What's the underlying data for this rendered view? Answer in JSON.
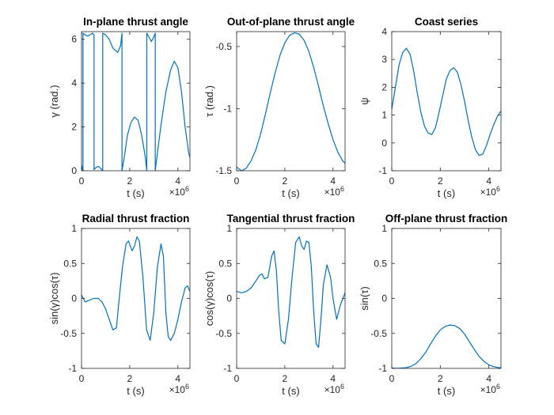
{
  "figure": {
    "background": "#ffffff",
    "line_color": "#0072BD",
    "axis_color": "#262626"
  },
  "chart_data": [
    {
      "type": "line",
      "title": "In-plane thrust angle",
      "xlabel": "t (s)",
      "ylabel": "γ (rad.)",
      "x_exponent_label": "×10^6",
      "xlim": [
        0,
        4.5
      ],
      "ylim": [
        0,
        6.35
      ],
      "xticks": [
        0,
        2,
        4
      ],
      "xtick_labels": [
        "0",
        "2",
        "4"
      ],
      "yticks": [
        0,
        2,
        4,
        6
      ],
      "ytick_labels": [
        "0",
        "2",
        "4",
        "6"
      ],
      "series": [
        {
          "x": [
            0,
            0.03,
            0.06,
            0.06,
            0.15,
            0.25,
            0.35,
            0.45,
            0.52,
            0.52,
            0.6,
            0.7,
            0.8,
            0.88,
            0.88,
            1.0,
            1.15,
            1.3,
            1.5,
            1.62,
            1.68,
            1.68,
            1.8,
            1.9,
            2.05,
            2.2,
            2.35,
            2.5,
            2.65,
            2.71,
            2.71,
            2.8,
            2.9,
            3.0,
            3.06,
            3.06,
            3.15,
            3.3,
            3.5,
            3.7,
            3.85,
            4.0,
            4.15,
            4.3,
            4.45,
            4.5
          ],
          "y": [
            0.25,
            0.1,
            0.0,
            6.28,
            6.2,
            6.15,
            6.2,
            6.28,
            6.2,
            0.05,
            0.15,
            0.2,
            0.1,
            0.0,
            6.28,
            6.2,
            6.0,
            5.6,
            5.4,
            5.7,
            6.28,
            0.0,
            0.8,
            1.6,
            2.2,
            2.45,
            2.3,
            1.6,
            0.6,
            0.0,
            6.28,
            6.1,
            5.9,
            6.1,
            6.28,
            0.0,
            0.8,
            2.1,
            3.6,
            4.6,
            5.0,
            4.7,
            3.6,
            2.0,
            0.8,
            0.6
          ]
        }
      ]
    },
    {
      "type": "line",
      "title": "Out-of-plane thrust angle",
      "xlabel": "t (s)",
      "ylabel": "τ (rad.)",
      "x_exponent_label": "×10^6",
      "xlim": [
        0,
        4.5
      ],
      "ylim": [
        -1.5,
        -0.38
      ],
      "xticks": [
        0,
        2,
        4
      ],
      "xtick_labels": [
        "0",
        "2",
        "4"
      ],
      "yticks": [
        -1.5,
        -1,
        -0.5
      ],
      "ytick_labels": [
        "-1.5",
        "-1",
        "-0.5"
      ],
      "series": [
        {
          "x": [
            0,
            0.2,
            0.4,
            0.6,
            0.8,
            1.0,
            1.2,
            1.4,
            1.6,
            1.8,
            2.0,
            2.2,
            2.4,
            2.6,
            2.8,
            3.0,
            3.2,
            3.4,
            3.6,
            3.8,
            4.0,
            4.2,
            4.4,
            4.5
          ],
          "y": [
            -1.47,
            -1.5,
            -1.48,
            -1.42,
            -1.33,
            -1.2,
            -1.04,
            -0.87,
            -0.71,
            -0.57,
            -0.47,
            -0.41,
            -0.39,
            -0.4,
            -0.45,
            -0.54,
            -0.67,
            -0.82,
            -0.98,
            -1.12,
            -1.25,
            -1.35,
            -1.42,
            -1.44
          ]
        }
      ]
    },
    {
      "type": "line",
      "title": "Coast series",
      "xlabel": "t (s)",
      "ylabel": "ψ",
      "x_exponent_label": "×10^6",
      "xlim": [
        0,
        4.5
      ],
      "ylim": [
        -1,
        4
      ],
      "xticks": [
        0,
        2,
        4
      ],
      "xtick_labels": [
        "0",
        "2",
        "4"
      ],
      "yticks": [
        -1,
        0,
        1,
        2,
        3,
        4
      ],
      "ytick_labels": [
        "-1",
        "0",
        "1",
        "2",
        "3",
        "4"
      ],
      "series": [
        {
          "x": [
            0,
            0.15,
            0.3,
            0.45,
            0.6,
            0.75,
            0.9,
            1.05,
            1.2,
            1.35,
            1.5,
            1.65,
            1.8,
            1.95,
            2.1,
            2.25,
            2.4,
            2.55,
            2.7,
            2.85,
            3.0,
            3.15,
            3.3,
            3.45,
            3.6,
            3.75,
            3.9,
            4.05,
            4.2,
            4.35,
            4.5
          ],
          "y": [
            1.2,
            2.0,
            2.8,
            3.25,
            3.4,
            3.2,
            2.6,
            1.8,
            1.1,
            0.6,
            0.35,
            0.3,
            0.55,
            1.1,
            1.7,
            2.3,
            2.6,
            2.7,
            2.55,
            2.1,
            1.5,
            0.8,
            0.2,
            -0.25,
            -0.45,
            -0.4,
            -0.1,
            0.3,
            0.65,
            0.95,
            1.15
          ]
        }
      ]
    },
    {
      "type": "line",
      "title": "Radial thrust fraction",
      "xlabel": "t (s)",
      "ylabel": "sin(γ)cos(τ)",
      "x_exponent_label": "×10^6",
      "xlim": [
        0,
        4.5
      ],
      "ylim": [
        -1,
        1
      ],
      "xticks": [
        0,
        2,
        4
      ],
      "xtick_labels": [
        "0",
        "2",
        "4"
      ],
      "yticks": [
        -1,
        -0.5,
        0,
        0.5,
        1
      ],
      "ytick_labels": [
        "-1",
        "-0.5",
        "0",
        "0.5",
        "1"
      ],
      "series": [
        {
          "x": [
            0,
            0.15,
            0.3,
            0.5,
            0.7,
            0.85,
            1.0,
            1.15,
            1.3,
            1.45,
            1.55,
            1.7,
            1.85,
            1.95,
            2.1,
            2.2,
            2.3,
            2.4,
            2.55,
            2.7,
            2.85,
            3.0,
            3.15,
            3.3,
            3.4,
            3.5,
            3.6,
            3.7,
            3.85,
            4.0,
            4.15,
            4.3,
            4.4,
            4.5
          ],
          "y": [
            0.05,
            -0.05,
            -0.03,
            0.0,
            0.0,
            -0.05,
            -0.15,
            -0.3,
            -0.45,
            -0.42,
            -0.05,
            0.45,
            0.78,
            0.82,
            0.68,
            0.75,
            0.88,
            0.82,
            0.3,
            -0.45,
            -0.6,
            -0.2,
            0.45,
            0.78,
            0.6,
            -0.2,
            -0.55,
            -0.6,
            -0.5,
            -0.3,
            -0.05,
            0.15,
            0.18,
            0.1
          ]
        }
      ]
    },
    {
      "type": "line",
      "title": "Tangential thrust fraction",
      "xlabel": "t (s)",
      "ylabel": "cos(γ)cos(τ)",
      "x_exponent_label": "×10^6",
      "xlim": [
        0,
        4.5
      ],
      "ylim": [
        -1,
        1
      ],
      "xticks": [
        0,
        2,
        4
      ],
      "xtick_labels": [
        "0",
        "2",
        "4"
      ],
      "yticks": [
        -1,
        -0.5,
        0,
        0.5,
        1
      ],
      "ytick_labels": [
        "-1",
        "-0.5",
        "0",
        "0.5",
        "1"
      ],
      "series": [
        {
          "x": [
            0,
            0.2,
            0.4,
            0.6,
            0.8,
            0.95,
            1.05,
            1.15,
            1.3,
            1.45,
            1.55,
            1.65,
            1.75,
            1.85,
            2.0,
            2.15,
            2.3,
            2.45,
            2.6,
            2.7,
            2.8,
            2.9,
            3.0,
            3.1,
            3.2,
            3.3,
            3.4,
            3.5,
            3.6,
            3.75,
            3.9,
            4.0,
            4.15,
            4.3,
            4.5
          ],
          "y": [
            0.1,
            0.08,
            0.1,
            0.15,
            0.25,
            0.33,
            0.35,
            0.28,
            0.3,
            0.6,
            0.68,
            0.4,
            -0.2,
            -0.6,
            -0.65,
            -0.3,
            0.3,
            0.8,
            0.88,
            0.75,
            0.7,
            0.82,
            0.8,
            0.45,
            -0.2,
            -0.65,
            -0.7,
            -0.3,
            0.2,
            0.48,
            0.3,
            0.0,
            -0.3,
            -0.1,
            0.08
          ]
        }
      ]
    },
    {
      "type": "line",
      "title": "Off-plane thrust fraction",
      "xlabel": "t (s)",
      "ylabel": "sin(τ)",
      "x_exponent_label": "×10^6",
      "xlim": [
        0,
        4.5
      ],
      "ylim": [
        -1,
        1
      ],
      "xticks": [
        0,
        2,
        4
      ],
      "xtick_labels": [
        "0",
        "2",
        "4"
      ],
      "yticks": [
        -1,
        -0.5,
        0,
        0.5,
        1
      ],
      "ytick_labels": [
        "-1",
        "-0.5",
        "0",
        "0.5",
        "1"
      ],
      "series": [
        {
          "x": [
            0,
            0.2,
            0.4,
            0.6,
            0.8,
            1.0,
            1.2,
            1.4,
            1.6,
            1.8,
            2.0,
            2.2,
            2.4,
            2.6,
            2.8,
            3.0,
            3.2,
            3.4,
            3.6,
            3.8,
            4.0,
            4.2,
            4.4,
            4.5
          ],
          "y": [
            -0.995,
            -1.0,
            -0.996,
            -0.99,
            -0.97,
            -0.93,
            -0.86,
            -0.77,
            -0.65,
            -0.54,
            -0.45,
            -0.4,
            -0.38,
            -0.39,
            -0.43,
            -0.51,
            -0.62,
            -0.73,
            -0.83,
            -0.9,
            -0.95,
            -0.975,
            -0.99,
            -0.99
          ]
        }
      ]
    }
  ]
}
